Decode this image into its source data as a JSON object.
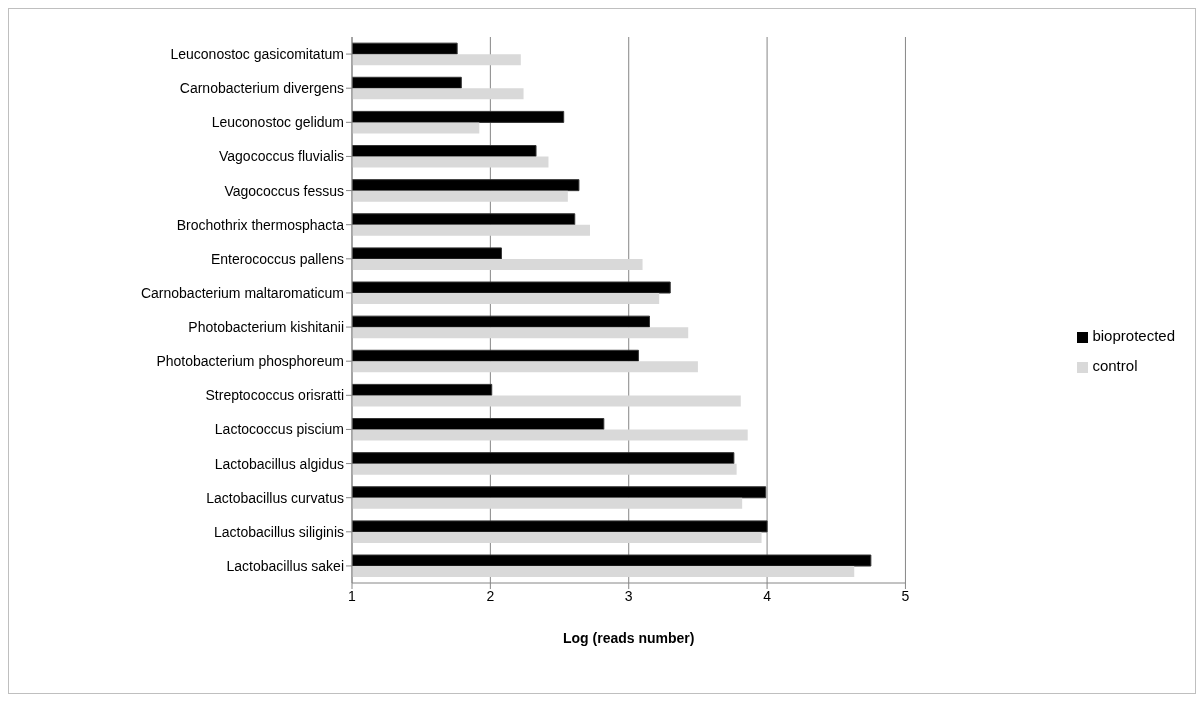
{
  "chart_data": {
    "type": "bar",
    "orientation": "horizontal",
    "xlabel": "Log (reads number)",
    "categories": [
      "Leuconostoc gasicomitatum",
      "Carnobacterium divergens",
      "Leuconostoc gelidum",
      "Vagococcus fluvialis",
      "Vagococcus fessus",
      "Brochothrix thermosphacta",
      "Enterococcus pallens",
      "Carnobacterium maltaromaticum",
      "Photobacterium kishitanii",
      "Photobacterium phosphoreum",
      "Streptococcus orisratti",
      "Lactococcus piscium",
      "Lactobacillus algidus",
      "Lactobacillus curvatus",
      "Lactobacillus siliginis",
      "Lactobacillus sakei"
    ],
    "series": [
      {
        "name": "bioprotected",
        "color": "#000000",
        "values": [
          1.76,
          1.79,
          2.53,
          2.33,
          2.64,
          2.61,
          2.08,
          3.3,
          3.15,
          3.07,
          2.01,
          2.82,
          3.76,
          3.99,
          4.0,
          4.75
        ]
      },
      {
        "name": "control",
        "color": "#d9d9d9",
        "values": [
          2.22,
          2.24,
          1.92,
          2.42,
          2.56,
          2.72,
          3.1,
          3.22,
          3.43,
          3.5,
          3.81,
          3.86,
          3.78,
          3.82,
          3.96,
          4.63
        ]
      }
    ],
    "xlim": [
      1,
      5
    ],
    "xticks": [
      1,
      2,
      3,
      4,
      5
    ],
    "grid": "x",
    "legend": "right"
  }
}
